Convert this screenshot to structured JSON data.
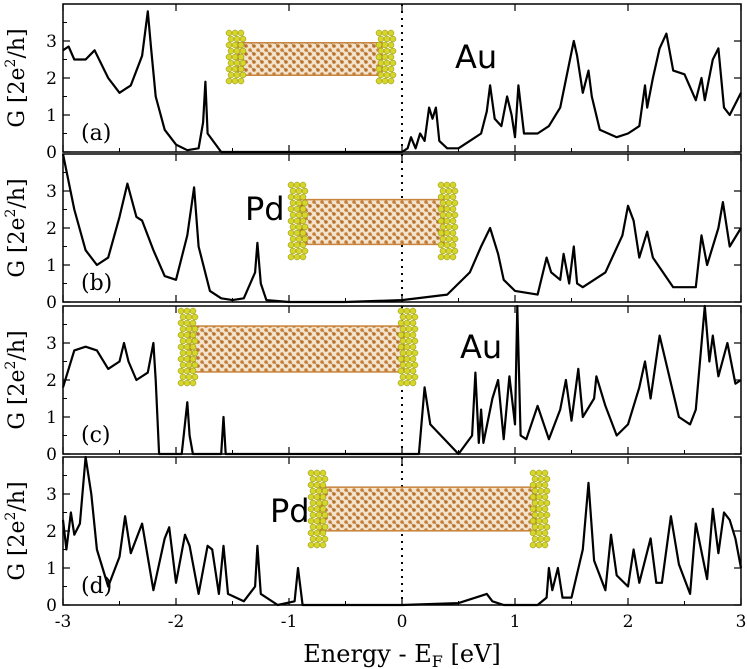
{
  "figure": {
    "xlabel_main": "Energy - E",
    "xlabel_sub": "F",
    "xlabel_tail": " [eV]",
    "ylabel_pre": "G [2e",
    "ylabel_sup": "2",
    "ylabel_post": "/h]",
    "xticks": [
      "-3",
      "-2",
      "-1",
      "0",
      "1",
      "2",
      "3"
    ],
    "colors": {
      "curve": "#000000",
      "tube": "#c8843c",
      "contact": "#d6d62a"
    }
  },
  "chart_data": [
    {
      "type": "line",
      "panel_label": "(a)",
      "material": "Au",
      "xlim": [
        -3,
        3
      ],
      "ylim": [
        0,
        4
      ],
      "yticks": [
        "0",
        "1",
        "2",
        "3"
      ],
      "x": [
        -3.0,
        -2.95,
        -2.9,
        -2.8,
        -2.72,
        -2.6,
        -2.5,
        -2.4,
        -2.3,
        -2.25,
        -2.22,
        -2.18,
        -2.1,
        -2.0,
        -1.9,
        -1.8,
        -1.76,
        -1.74,
        -1.72,
        -1.6,
        -1.0,
        -0.5,
        -0.01,
        0.0,
        0.05,
        0.08,
        0.12,
        0.16,
        0.2,
        0.24,
        0.27,
        0.3,
        0.33,
        0.4,
        0.5,
        0.6,
        0.7,
        0.75,
        0.78,
        0.82,
        0.88,
        0.93,
        0.97,
        1.0,
        1.03,
        1.08,
        1.2,
        1.3,
        1.4,
        1.5,
        1.52,
        1.55,
        1.6,
        1.65,
        1.68,
        1.75,
        1.9,
        2.0,
        2.1,
        2.15,
        2.17,
        2.22,
        2.28,
        2.34,
        2.4,
        2.5,
        2.6,
        2.65,
        2.68,
        2.75,
        2.8,
        2.85,
        2.9,
        3.0
      ],
      "y": [
        2.75,
        2.85,
        2.5,
        2.5,
        2.75,
        2.0,
        1.6,
        1.8,
        2.6,
        3.8,
        2.8,
        1.5,
        0.6,
        0.2,
        0.05,
        0.1,
        0.8,
        1.9,
        0.5,
        0.0,
        0.0,
        0.0,
        0.0,
        0.0,
        0.1,
        0.4,
        0.1,
        0.5,
        0.3,
        1.2,
        0.9,
        1.2,
        0.3,
        0.1,
        0.1,
        0.3,
        0.5,
        1.1,
        1.8,
        0.9,
        0.7,
        1.5,
        1.0,
        0.4,
        1.8,
        0.5,
        0.5,
        0.7,
        1.2,
        2.7,
        3.0,
        2.6,
        1.6,
        2.2,
        1.5,
        0.6,
        0.4,
        0.5,
        0.7,
        1.8,
        1.2,
        2.0,
        2.8,
        3.2,
        2.2,
        2.1,
        1.4,
        2.0,
        1.4,
        2.5,
        2.8,
        1.2,
        1.0,
        1.6
      ]
    },
    {
      "type": "line",
      "panel_label": "(b)",
      "material": "Pd",
      "xlim": [
        -3,
        3
      ],
      "ylim": [
        0,
        4
      ],
      "yticks": [
        "0",
        "1",
        "2",
        "3"
      ],
      "x": [
        -3.0,
        -2.9,
        -2.8,
        -2.7,
        -2.6,
        -2.5,
        -2.43,
        -2.35,
        -2.3,
        -2.2,
        -2.1,
        -2.0,
        -1.9,
        -1.84,
        -1.8,
        -1.7,
        -1.6,
        -1.5,
        -1.4,
        -1.3,
        -1.28,
        -1.25,
        -1.2,
        -1.0,
        -0.5,
        0.0,
        0.4,
        0.6,
        0.7,
        0.78,
        0.85,
        0.9,
        1.0,
        1.2,
        1.28,
        1.32,
        1.4,
        1.43,
        1.48,
        1.52,
        1.55,
        1.6,
        1.8,
        1.95,
        2.0,
        2.05,
        2.1,
        2.17,
        2.22,
        2.4,
        2.6,
        2.65,
        2.7,
        2.8,
        2.84,
        2.9,
        3.0
      ],
      "y": [
        4.0,
        2.5,
        1.4,
        1.0,
        1.2,
        2.3,
        3.2,
        2.3,
        2.2,
        1.4,
        0.7,
        0.6,
        1.8,
        3.1,
        1.5,
        0.3,
        0.1,
        0.05,
        0.1,
        0.8,
        1.6,
        0.5,
        0.05,
        0.0,
        0.0,
        0.05,
        0.2,
        0.8,
        1.5,
        2.0,
        1.3,
        0.6,
        0.3,
        0.2,
        1.2,
        0.8,
        0.6,
        1.3,
        0.5,
        1.5,
        0.5,
        0.4,
        0.8,
        1.8,
        2.6,
        2.2,
        1.2,
        1.9,
        1.2,
        0.4,
        0.4,
        1.8,
        1.0,
        2.0,
        2.7,
        1.5,
        2.0
      ]
    },
    {
      "type": "line",
      "panel_label": "(c)",
      "material": "Au",
      "xlim": [
        -3,
        3
      ],
      "ylim": [
        0,
        4
      ],
      "yticks": [
        "0",
        "1",
        "2",
        "3"
      ],
      "x": [
        -3.0,
        -2.9,
        -2.8,
        -2.7,
        -2.6,
        -2.5,
        -2.46,
        -2.42,
        -2.35,
        -2.25,
        -2.2,
        -2.18,
        -2.15,
        -1.95,
        -1.9,
        -1.88,
        -1.85,
        -1.6,
        -1.58,
        -1.56,
        -1.0,
        -0.5,
        0.0,
        0.15,
        0.2,
        0.25,
        0.5,
        0.62,
        0.65,
        0.68,
        0.7,
        0.72,
        0.8,
        0.85,
        0.9,
        0.95,
        1.0,
        1.02,
        1.05,
        1.1,
        1.2,
        1.3,
        1.4,
        1.45,
        1.5,
        1.56,
        1.6,
        1.7,
        1.72,
        1.8,
        1.9,
        2.0,
        2.1,
        2.15,
        2.2,
        2.28,
        2.35,
        2.45,
        2.55,
        2.6,
        2.68,
        2.72,
        2.75,
        2.8,
        2.88,
        2.95,
        3.0
      ],
      "y": [
        1.8,
        2.8,
        2.9,
        2.8,
        2.3,
        2.5,
        3.0,
        2.5,
        2.0,
        2.2,
        3.0,
        2.0,
        0.0,
        0.0,
        1.4,
        0.5,
        0.0,
        0.0,
        1.0,
        0.0,
        0.0,
        0.0,
        0.0,
        0.0,
        1.8,
        0.8,
        0.0,
        0.5,
        2.2,
        0.3,
        1.2,
        0.3,
        1.5,
        2.0,
        0.4,
        2.1,
        0.8,
        4.0,
        0.5,
        0.4,
        1.3,
        0.4,
        1.2,
        2.0,
        0.9,
        2.3,
        1.0,
        1.5,
        2.1,
        1.3,
        0.5,
        0.8,
        1.8,
        2.5,
        1.5,
        3.2,
        2.3,
        1.0,
        0.8,
        1.2,
        4.0,
        2.5,
        3.2,
        2.1,
        3.0,
        1.9,
        2.0
      ]
    },
    {
      "type": "line",
      "panel_label": "(d)",
      "material": "Pd",
      "xlim": [
        -3,
        3
      ],
      "ylim": [
        0,
        4
      ],
      "yticks": [
        "0",
        "1",
        "2",
        "3"
      ],
      "x": [
        -3.0,
        -2.97,
        -2.93,
        -2.9,
        -2.85,
        -2.8,
        -2.75,
        -2.7,
        -2.6,
        -2.5,
        -2.45,
        -2.4,
        -2.3,
        -2.2,
        -2.1,
        -2.06,
        -2.0,
        -1.92,
        -1.88,
        -1.8,
        -1.72,
        -1.68,
        -1.62,
        -1.58,
        -1.54,
        -1.4,
        -1.3,
        -1.28,
        -1.25,
        -1.1,
        -0.95,
        -0.92,
        -0.88,
        -0.5,
        0.0,
        0.5,
        0.7,
        0.75,
        0.8,
        0.9,
        1.0,
        1.2,
        1.28,
        1.3,
        1.33,
        1.38,
        1.42,
        1.5,
        1.6,
        1.65,
        1.7,
        1.8,
        1.85,
        1.9,
        2.0,
        2.05,
        2.1,
        2.2,
        2.25,
        2.3,
        2.38,
        2.45,
        2.55,
        2.6,
        2.7,
        2.75,
        2.8,
        2.85,
        2.9,
        2.95,
        3.0
      ],
      "y": [
        2.3,
        1.5,
        2.5,
        1.9,
        2.2,
        4.0,
        3.0,
        1.5,
        0.5,
        1.3,
        2.4,
        1.4,
        2.2,
        0.4,
        1.8,
        2.1,
        0.6,
        1.9,
        1.6,
        0.3,
        1.6,
        1.5,
        0.3,
        1.6,
        0.3,
        0.1,
        0.5,
        1.6,
        0.3,
        0.0,
        0.1,
        1.0,
        0.0,
        0.0,
        0.0,
        0.05,
        0.25,
        0.3,
        0.1,
        0.0,
        0.0,
        0.0,
        0.2,
        1.0,
        0.4,
        1.0,
        0.2,
        0.2,
        1.5,
        3.3,
        1.2,
        0.4,
        1.9,
        0.8,
        0.5,
        1.5,
        0.6,
        1.8,
        0.6,
        0.6,
        2.4,
        1.1,
        0.3,
        2.2,
        0.7,
        2.6,
        1.4,
        2.5,
        2.3,
        1.8,
        1.0
      ]
    }
  ]
}
